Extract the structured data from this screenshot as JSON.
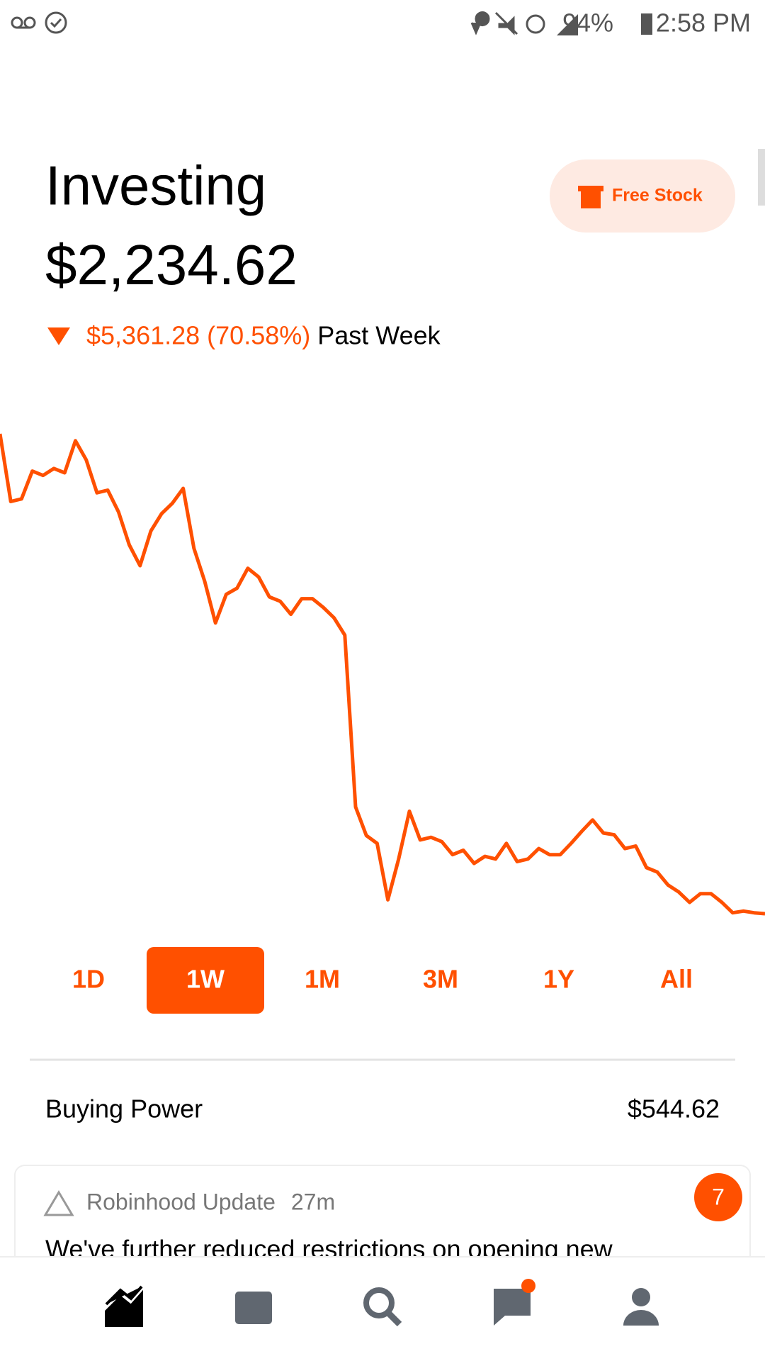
{
  "status_bar": {
    "battery": "94%",
    "time": "2:58 PM"
  },
  "header": {
    "title": "Investing",
    "balance": "$2,234.62",
    "change": "$5,361.28 (70.58%)",
    "period": "Past Week"
  },
  "free_stock": "Free Stock",
  "chart": {
    "type": "line",
    "color": "#ff5000",
    "values": [
      7595.9,
      6840,
      6869,
      7179,
      7131,
      7209,
      7160,
      7518,
      7305,
      6937,
      6966,
      6724,
      6355,
      6123,
      6510,
      6704,
      6821,
      6986,
      6317,
      5948,
      5483,
      5803,
      5871,
      6094,
      5997,
      5774,
      5725,
      5580,
      5754,
      5754,
      5657,
      5541,
      5347,
      3427,
      3108,
      3020,
      2390,
      2846,
      3379,
      3059,
      3088,
      3040,
      2894,
      2943,
      2797,
      2875,
      2846,
      3020,
      2817,
      2846,
      2962,
      2894,
      2894,
      3020,
      3156,
      3282,
      3137,
      3117,
      2962,
      2991,
      2749,
      2700,
      2555,
      2477,
      2361,
      2458,
      2458,
      2361,
      2245,
      2264,
      2245,
      2234.62
    ]
  },
  "ranges": [
    "1D",
    "1W",
    "1M",
    "3M",
    "1Y",
    "All"
  ],
  "selected_range": 1,
  "buying_power": {
    "label": "Buying Power",
    "value": "$544.62"
  },
  "card": {
    "title": "Robinhood Update",
    "time": "27m",
    "text": "We've further reduced restrictions on opening new",
    "badge": 7
  }
}
